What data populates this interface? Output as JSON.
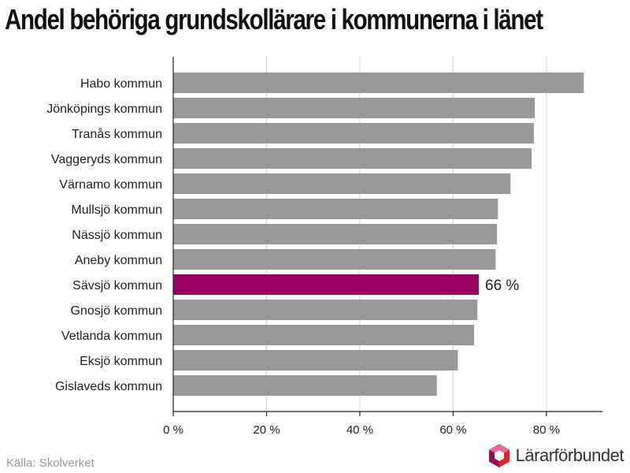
{
  "title": "Andel behöriga grundskollärare i kommunerna i länet",
  "source": "Källa: Skolverket",
  "logo_text": "Lärarförbundet",
  "colors": {
    "bar_default": "#999999",
    "bar_highlight": "#99005f",
    "grid": "#d9d9d9",
    "axis": "#222222",
    "logo_magenta": "#9b0a5e",
    "logo_red": "#d8232a",
    "logo_pink": "#e56a9a"
  },
  "chart_data": {
    "type": "bar",
    "orientation": "horizontal",
    "title": "Andel behöriga grundskollärare i kommunerna i länet",
    "xlabel": "",
    "ylabel": "",
    "xlim": [
      0,
      92
    ],
    "xticks": [
      0,
      20,
      40,
      60,
      80
    ],
    "xtick_labels": [
      "0 %",
      "20 %",
      "40 %",
      "60 %",
      "80 %"
    ],
    "grid": true,
    "categories": [
      "Habo kommun",
      "Jönköpings kommun",
      "Tranås kommun",
      "Vaggeryds kommun",
      "Värnamo kommun",
      "Mullsjö kommun",
      "Nässjö kommun",
      "Aneby kommun",
      "Sävsjö kommun",
      "Gnosjö kommun",
      "Vetlanda kommun",
      "Eksjö kommun",
      "Gislaveds kommun"
    ],
    "values": [
      88,
      77.5,
      77.3,
      76.8,
      72.3,
      69.6,
      69.4,
      69.1,
      65.5,
      65.2,
      64.5,
      61,
      56.5
    ],
    "highlight": "Sävsjö kommun",
    "annotations": [
      {
        "category": "Sävsjö kommun",
        "text": "66 %"
      }
    ]
  }
}
